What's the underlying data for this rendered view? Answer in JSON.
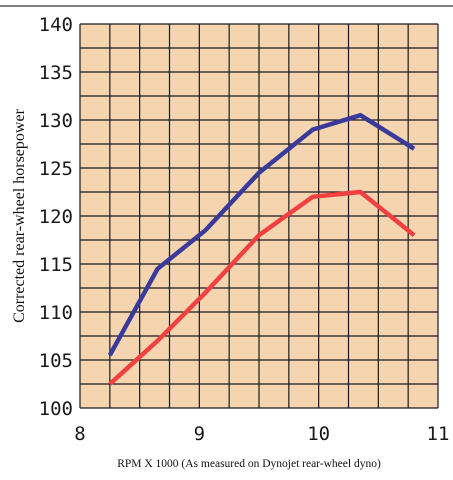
{
  "chart_data": {
    "type": "line",
    "xlabel": "RPM X 1000 (As measured on Dynojet rear-wheel dyno)",
    "ylabel": "Corrected rear-wheel horsepower",
    "xlim": [
      8,
      11
    ],
    "ylim": [
      100,
      140
    ],
    "x_ticks": [
      8,
      9,
      10,
      11
    ],
    "y_ticks": [
      100,
      105,
      110,
      115,
      120,
      125,
      130,
      135,
      140
    ],
    "grid": true,
    "background_color": "#f5d5b0",
    "grid_color": "#1a1a1a",
    "series": [
      {
        "color": "#3a3a9a",
        "x": [
          8.25,
          8.65,
          9.05,
          9.5,
          9.95,
          10.35,
          10.8
        ],
        "y": [
          105.5,
          114.5,
          118.5,
          124.5,
          129,
          130.5,
          127
        ]
      },
      {
        "color": "#f04040",
        "x": [
          8.25,
          8.65,
          9.05,
          9.5,
          9.95,
          10.35,
          10.8
        ],
        "y": [
          102.5,
          107,
          112,
          118,
          122,
          122.5,
          118
        ]
      }
    ]
  }
}
